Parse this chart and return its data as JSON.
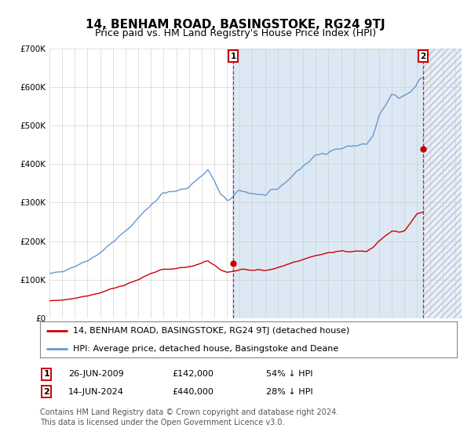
{
  "title": "14, BENHAM ROAD, BASINGSTOKE, RG24 9TJ",
  "subtitle": "Price paid vs. HM Land Registry's House Price Index (HPI)",
  "ylim": [
    0,
    700000
  ],
  "yticks": [
    0,
    100000,
    200000,
    300000,
    400000,
    500000,
    600000,
    700000
  ],
  "ytick_labels": [
    "£0",
    "£100K",
    "£200K",
    "£300K",
    "£400K",
    "£500K",
    "£600K",
    "£700K"
  ],
  "xlim_start": 1995.0,
  "xlim_end": 2027.5,
  "background_color": "#ffffff",
  "plot_bg_color": "#ffffff",
  "shaded_bg_color": "#dde8f5",
  "grid_color": "#cccccc",
  "hpi_color": "#6699cc",
  "price_color": "#cc0000",
  "sale1_year": 2009,
  "sale1_month": 6,
  "sale1_price": 142000,
  "sale2_year": 2024,
  "sale2_month": 6,
  "sale2_price": 440000,
  "future_hatch_start": 2024.45,
  "shaded_start": 2009.45,
  "legend_label_red": "14, BENHAM ROAD, BASINGSTOKE, RG24 9TJ (detached house)",
  "legend_label_blue": "HPI: Average price, detached house, Basingstoke and Deane",
  "footer1": "Contains HM Land Registry data © Crown copyright and database right 2024.",
  "footer2": "This data is licensed under the Open Government Licence v3.0.",
  "info1_num": "1",
  "info1_date": "26-JUN-2009",
  "info1_price": "£142,000",
  "info1_hpi": "54% ↓ HPI",
  "info2_num": "2",
  "info2_date": "14-JUN-2024",
  "info2_price": "£440,000",
  "info2_hpi": "28% ↓ HPI",
  "title_fontsize": 11,
  "subtitle_fontsize": 9,
  "tick_fontsize": 7.5,
  "legend_fontsize": 8,
  "footer_fontsize": 7
}
